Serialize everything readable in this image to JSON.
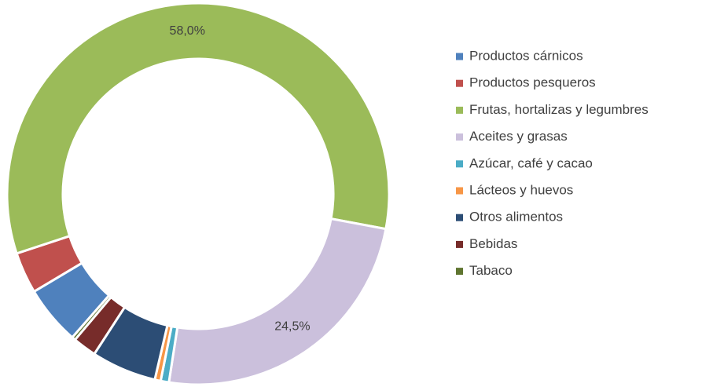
{
  "chart_data": {
    "type": "doughnut",
    "categories": [
      "Productos cárnicos",
      "Productos pesqueros",
      "Frutas, hortalizas y legumbres",
      "Aceites y grasas",
      "Azúcar, café y cacao",
      "Lácteos y huevos",
      "Otros alimentos",
      "Bebidas",
      "Tabaco"
    ],
    "values": [
      5,
      3.5,
      58.0,
      24.5,
      0.7,
      0.5,
      5.5,
      2,
      0.3
    ],
    "value_labels": [
      null,
      null,
      "58,0%",
      "24,5%",
      null,
      null,
      null,
      null,
      null
    ],
    "colors": [
      "#4f81bd",
      "#c0504d",
      "#9bbb59",
      "#cbc0dc",
      "#4bacc6",
      "#f79646",
      "#2c4d75",
      "#772c2a",
      "#5f7530"
    ],
    "legend": "right"
  }
}
